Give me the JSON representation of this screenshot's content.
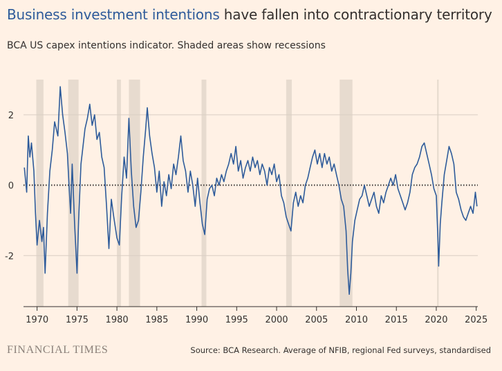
{
  "header": {
    "title_highlight": "Business investment intentions",
    "title_rest": " have fallen into contractionary territory",
    "subtitle": "BCA US capex intentions indicator. Shaded areas show recessions"
  },
  "footer": {
    "logo_text": "FINANCIAL TIMES",
    "source": "Source: BCA Research. Average of NFIB, regional Fed surveys, standardised"
  },
  "colors": {
    "background": "#fff1e5",
    "line": "#2e5b9a",
    "recession": "#e7dbcf",
    "grid": "#d9cec4",
    "zero_line": "#33302e",
    "axis": "#33302e"
  },
  "chart_data": {
    "type": "line",
    "title": "",
    "xlabel": "",
    "ylabel": "",
    "xlim": [
      1968.3,
      2025.2
    ],
    "ylim": [
      -3.45,
      3.0
    ],
    "x_ticks": [
      1970,
      1975,
      1980,
      1985,
      1990,
      1995,
      2000,
      2005,
      2010,
      2015,
      2020,
      2025
    ],
    "y_ticks": [
      2,
      0,
      -2
    ],
    "grid": "horizontal",
    "zero_line": "dotted",
    "recessions": [
      [
        1969.9,
        1970.8
      ],
      [
        1973.9,
        1975.2
      ],
      [
        1980.0,
        1980.5
      ],
      [
        1981.5,
        1982.9
      ],
      [
        1990.6,
        1991.2
      ],
      [
        2001.2,
        2001.9
      ],
      [
        2007.9,
        2009.5
      ],
      [
        2020.1,
        2020.3
      ]
    ],
    "series": [
      {
        "values": [
          [
            1968.4,
            0.5
          ],
          [
            1968.7,
            -0.2
          ],
          [
            1968.9,
            1.4
          ],
          [
            1969.1,
            0.8
          ],
          [
            1969.3,
            1.2
          ],
          [
            1969.6,
            0.4
          ],
          [
            1969.8,
            -0.8
          ],
          [
            1970.0,
            -1.7
          ],
          [
            1970.3,
            -1.0
          ],
          [
            1970.6,
            -1.6
          ],
          [
            1970.8,
            -1.2
          ],
          [
            1971.0,
            -2.5
          ],
          [
            1971.3,
            -0.8
          ],
          [
            1971.6,
            0.4
          ],
          [
            1971.9,
            1.0
          ],
          [
            1972.2,
            1.8
          ],
          [
            1972.6,
            1.4
          ],
          [
            1972.9,
            2.8
          ],
          [
            1973.2,
            2.0
          ],
          [
            1973.5,
            1.5
          ],
          [
            1973.8,
            0.9
          ],
          [
            1974.0,
            0.0
          ],
          [
            1974.2,
            -0.8
          ],
          [
            1974.4,
            0.6
          ],
          [
            1974.7,
            -1.1
          ],
          [
            1975.0,
            -2.5
          ],
          [
            1975.2,
            -1.0
          ],
          [
            1975.5,
            0.6
          ],
          [
            1975.8,
            1.2
          ],
          [
            1976.0,
            1.6
          ],
          [
            1976.3,
            1.9
          ],
          [
            1976.6,
            2.3
          ],
          [
            1976.9,
            1.7
          ],
          [
            1977.2,
            2.0
          ],
          [
            1977.5,
            1.3
          ],
          [
            1977.8,
            1.5
          ],
          [
            1978.1,
            0.8
          ],
          [
            1978.4,
            0.5
          ],
          [
            1978.7,
            -0.6
          ],
          [
            1979.0,
            -1.8
          ],
          [
            1979.3,
            -0.4
          ],
          [
            1979.6,
            -0.9
          ],
          [
            1980.0,
            -1.5
          ],
          [
            1980.3,
            -1.7
          ],
          [
            1980.6,
            -0.3
          ],
          [
            1980.9,
            0.8
          ],
          [
            1981.2,
            0.2
          ],
          [
            1981.5,
            1.9
          ],
          [
            1981.8,
            0.4
          ],
          [
            1982.1,
            -0.6
          ],
          [
            1982.4,
            -1.2
          ],
          [
            1982.7,
            -1.0
          ],
          [
            1983.0,
            -0.2
          ],
          [
            1983.3,
            0.8
          ],
          [
            1983.6,
            1.6
          ],
          [
            1983.8,
            2.2
          ],
          [
            1984.1,
            1.4
          ],
          [
            1984.4,
            0.9
          ],
          [
            1984.7,
            0.5
          ],
          [
            1985.0,
            -0.2
          ],
          [
            1985.3,
            0.4
          ],
          [
            1985.6,
            -0.6
          ],
          [
            1985.9,
            0.1
          ],
          [
            1986.2,
            -0.3
          ],
          [
            1986.5,
            0.3
          ],
          [
            1986.8,
            -0.1
          ],
          [
            1987.1,
            0.6
          ],
          [
            1987.4,
            0.3
          ],
          [
            1987.7,
            0.8
          ],
          [
            1988.0,
            1.4
          ],
          [
            1988.3,
            0.7
          ],
          [
            1988.6,
            0.4
          ],
          [
            1988.9,
            -0.2
          ],
          [
            1989.2,
            0.4
          ],
          [
            1989.5,
            0.0
          ],
          [
            1989.8,
            -0.6
          ],
          [
            1990.1,
            0.2
          ],
          [
            1990.4,
            -0.5
          ],
          [
            1990.7,
            -1.1
          ],
          [
            1991.0,
            -1.4
          ],
          [
            1991.3,
            -0.4
          ],
          [
            1991.6,
            -0.1
          ],
          [
            1991.9,
            0.0
          ],
          [
            1992.2,
            -0.3
          ],
          [
            1992.5,
            0.2
          ],
          [
            1992.8,
            0.0
          ],
          [
            1993.1,
            0.3
          ],
          [
            1993.4,
            0.1
          ],
          [
            1993.7,
            0.4
          ],
          [
            1994.0,
            0.6
          ],
          [
            1994.3,
            0.9
          ],
          [
            1994.6,
            0.6
          ],
          [
            1994.9,
            1.1
          ],
          [
            1995.2,
            0.4
          ],
          [
            1995.5,
            0.7
          ],
          [
            1995.8,
            0.2
          ],
          [
            1996.1,
            0.5
          ],
          [
            1996.4,
            0.7
          ],
          [
            1996.7,
            0.4
          ],
          [
            1997.0,
            0.8
          ],
          [
            1997.3,
            0.5
          ],
          [
            1997.6,
            0.7
          ],
          [
            1997.9,
            0.3
          ],
          [
            1998.2,
            0.6
          ],
          [
            1998.5,
            0.4
          ],
          [
            1998.8,
            0.0
          ],
          [
            1999.1,
            0.5
          ],
          [
            1999.4,
            0.3
          ],
          [
            1999.7,
            0.6
          ],
          [
            2000.0,
            0.1
          ],
          [
            2000.3,
            0.3
          ],
          [
            2000.6,
            -0.3
          ],
          [
            2000.9,
            -0.5
          ],
          [
            2001.2,
            -0.9
          ],
          [
            2001.5,
            -1.1
          ],
          [
            2001.8,
            -1.3
          ],
          [
            2002.1,
            -0.5
          ],
          [
            2002.4,
            -0.2
          ],
          [
            2002.7,
            -0.6
          ],
          [
            2003.0,
            -0.3
          ],
          [
            2003.3,
            -0.5
          ],
          [
            2003.6,
            0.0
          ],
          [
            2003.9,
            0.2
          ],
          [
            2004.2,
            0.5
          ],
          [
            2004.5,
            0.8
          ],
          [
            2004.8,
            1.0
          ],
          [
            2005.1,
            0.6
          ],
          [
            2005.4,
            0.9
          ],
          [
            2005.7,
            0.5
          ],
          [
            2006.0,
            0.9
          ],
          [
            2006.3,
            0.6
          ],
          [
            2006.6,
            0.8
          ],
          [
            2006.9,
            0.4
          ],
          [
            2007.2,
            0.6
          ],
          [
            2007.5,
            0.3
          ],
          [
            2007.8,
            0.0
          ],
          [
            2008.1,
            -0.4
          ],
          [
            2008.4,
            -0.6
          ],
          [
            2008.7,
            -1.3
          ],
          [
            2008.9,
            -2.4
          ],
          [
            2009.1,
            -3.1
          ],
          [
            2009.3,
            -2.5
          ],
          [
            2009.5,
            -1.6
          ],
          [
            2009.8,
            -1.0
          ],
          [
            2010.1,
            -0.7
          ],
          [
            2010.4,
            -0.4
          ],
          [
            2010.7,
            -0.3
          ],
          [
            2011.0,
            0.0
          ],
          [
            2011.3,
            -0.3
          ],
          [
            2011.6,
            -0.6
          ],
          [
            2011.9,
            -0.4
          ],
          [
            2012.2,
            -0.2
          ],
          [
            2012.5,
            -0.6
          ],
          [
            2012.8,
            -0.8
          ],
          [
            2013.1,
            -0.3
          ],
          [
            2013.4,
            -0.5
          ],
          [
            2013.7,
            -0.2
          ],
          [
            2014.0,
            0.0
          ],
          [
            2014.3,
            0.2
          ],
          [
            2014.6,
            0.0
          ],
          [
            2014.9,
            0.3
          ],
          [
            2015.2,
            -0.1
          ],
          [
            2015.5,
            -0.3
          ],
          [
            2015.8,
            -0.5
          ],
          [
            2016.1,
            -0.7
          ],
          [
            2016.4,
            -0.5
          ],
          [
            2016.7,
            -0.2
          ],
          [
            2017.0,
            0.3
          ],
          [
            2017.3,
            0.5
          ],
          [
            2017.6,
            0.6
          ],
          [
            2017.9,
            0.8
          ],
          [
            2018.2,
            1.1
          ],
          [
            2018.5,
            1.2
          ],
          [
            2018.8,
            0.9
          ],
          [
            2019.1,
            0.6
          ],
          [
            2019.4,
            0.3
          ],
          [
            2019.7,
            -0.1
          ],
          [
            2020.0,
            -0.3
          ],
          [
            2020.2,
            -1.5
          ],
          [
            2020.3,
            -2.3
          ],
          [
            2020.5,
            -1.1
          ],
          [
            2020.7,
            -0.5
          ],
          [
            2021.0,
            0.3
          ],
          [
            2021.3,
            0.7
          ],
          [
            2021.6,
            1.1
          ],
          [
            2021.9,
            0.9
          ],
          [
            2022.2,
            0.6
          ],
          [
            2022.5,
            -0.2
          ],
          [
            2022.8,
            -0.4
          ],
          [
            2023.1,
            -0.7
          ],
          [
            2023.4,
            -0.9
          ],
          [
            2023.7,
            -1.0
          ],
          [
            2024.0,
            -0.8
          ],
          [
            2024.3,
            -0.6
          ],
          [
            2024.6,
            -0.8
          ],
          [
            2024.9,
            -0.2
          ],
          [
            2025.1,
            -0.6
          ]
        ]
      }
    ]
  }
}
